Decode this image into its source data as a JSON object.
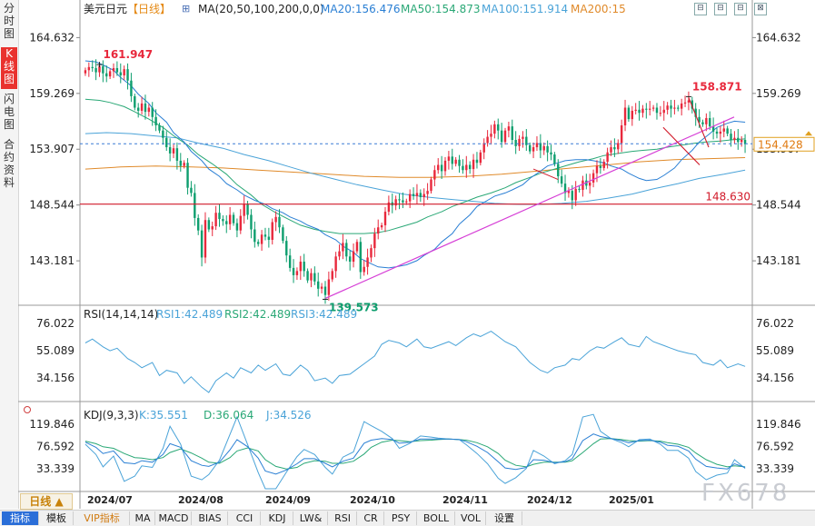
{
  "left_tabs": [
    {
      "label": "分时图",
      "active": false
    },
    {
      "label": "K线图",
      "active": true
    },
    {
      "label": "闪电图",
      "active": false
    },
    {
      "label": "合约资料",
      "active": false
    }
  ],
  "header": {
    "title": "美元日元",
    "period_tag": "【日线】",
    "ma_label": "MA(20,50,100,200,0,0)",
    "ma_values": [
      {
        "label": "MA20:156.476",
        "color": "#2a7fd4"
      },
      {
        "label": "MA50:154.873",
        "color": "#2aa876"
      },
      {
        "label": "MA100:151.914",
        "color": "#4aa3d8"
      },
      {
        "label": "MA200:15",
        "color": "#e08a2a"
      }
    ],
    "controls": [
      "⊟",
      "⊟",
      "⊟",
      "⊠"
    ]
  },
  "rsi_header": {
    "title": "RSI(14,14,14)",
    "values": [
      {
        "label": "RSI1:42.489",
        "color": "#4aa3d8"
      },
      {
        "label": "RSI2:42.489",
        "color": "#2aa876"
      },
      {
        "label": "RSI3:42.489",
        "color": "#4aa3d8"
      }
    ]
  },
  "kdj_header": {
    "title": "KDJ(9,3,3)",
    "values": [
      {
        "label": "K:35.551",
        "color": "#4aa3d8"
      },
      {
        "label": "D:36.064",
        "color": "#2aa876"
      },
      {
        "label": "J:34.526",
        "color": "#4aa3d8"
      }
    ]
  },
  "axis_labels": {
    "price": [
      "164.632",
      "159.269",
      "153.907",
      "148.544",
      "143.181"
    ],
    "rsi": [
      "76.022",
      "55.089",
      "34.156"
    ],
    "kdj": [
      "119.846",
      "76.592",
      "33.339"
    ]
  },
  "current_price": "154.428",
  "price_annotations": [
    "161.947",
    "158.871",
    "148.630",
    "139.573"
  ],
  "date_labels": [
    "2024/07",
    "2024/08",
    "2024/09",
    "2024/10",
    "2024/11",
    "2024/12",
    "2025/01"
  ],
  "period_button": "日线 ▲",
  "bottom_tabs": [
    "指标",
    "模板",
    "VIP指标",
    "MA",
    "MACD",
    "BIAS",
    "CCI",
    "KDJ",
    "LW&",
    "RSI",
    "CR",
    "PSY",
    "BOLL",
    "VOL",
    "设置"
  ],
  "watermark": "FX678",
  "colors": {
    "up": "#e8283c",
    "down": "#0e9e6e",
    "ma20": "#2a7fd4",
    "ma50": "#2aa876",
    "ma100": "#4aa3d8",
    "ma200": "#e08a2a",
    "trend": "#d63fd6",
    "red_line": "#d11a2a"
  },
  "chart_data": {
    "type": "candlestick",
    "title": "美元日元",
    "period": "日线",
    "ylim": [
      139.0,
      166.5
    ],
    "price_ticks": [
      164.632,
      159.269,
      153.907,
      148.544,
      143.181
    ],
    "months": [
      "2024/07",
      "2024/08",
      "2024/09",
      "2024/10",
      "2024/11",
      "2024/12",
      "2025/01"
    ],
    "closes": [
      161.5,
      161.8,
      161.7,
      161.3,
      161.9,
      161.2,
      160.9,
      161.4,
      161.7,
      161.3,
      161.0,
      161.6,
      160.5,
      159.0,
      157.9,
      157.6,
      158.3,
      157.5,
      157.9,
      157.0,
      156.2,
      155.7,
      155.0,
      154.1,
      153.5,
      154.0,
      152.8,
      152.3,
      152.6,
      150.2,
      149.7,
      147.3,
      146.1,
      143.5,
      147.1,
      146.2,
      146.5,
      147.8,
      147.2,
      147.0,
      146.7,
      147.6,
      146.8,
      146.1,
      147.5,
      148.6,
      147.6,
      146.2,
      145.0,
      144.8,
      145.7,
      145.5,
      145.2,
      146.9,
      147.4,
      146.4,
      145.1,
      143.7,
      142.5,
      141.8,
      142.2,
      143.1,
      142.2,
      141.3,
      142.0,
      141.2,
      140.5,
      140.7,
      139.9,
      141.4,
      142.2,
      143.6,
      144.1,
      144.9,
      143.6,
      143.1,
      144.1,
      145.0,
      142.1,
      142.6,
      143.5,
      144.4,
      145.8,
      146.4,
      146.6,
      147.9,
      148.8,
      148.5,
      149.1,
      149.0,
      148.8,
      148.9,
      149.6,
      149.4,
      149.7,
      149.3,
      149.6,
      149.9,
      151.0,
      151.9,
      152.4,
      151.8,
      152.8,
      153.2,
      152.5,
      152.9,
      152.3,
      151.9,
      152.4,
      152.0,
      152.9,
      152.6,
      153.6,
      154.5,
      155.1,
      155.4,
      156.3,
      155.7,
      154.6,
      155.7,
      156.1,
      154.8,
      154.2,
      154.9,
      155.1,
      154.3,
      153.7,
      154.1,
      154.5,
      153.8,
      154.2,
      153.6,
      153.4,
      152.5,
      151.3,
      150.6,
      149.7,
      149.9,
      149.0,
      150.1,
      150.0,
      150.9,
      150.4,
      150.7,
      151.6,
      152.3,
      152.1,
      152.7,
      153.6,
      154.1,
      153.9,
      154.5,
      156.2,
      157.9,
      156.8,
      157.6,
      157.7,
      157.4,
      157.8,
      157.7,
      157.8,
      157.9,
      157.4,
      157.4,
      157.7,
      158.1,
      157.8,
      157.9,
      157.8,
      158.3,
      158.4,
      158.6,
      157.8,
      157.0,
      156.5,
      156.3,
      156.9,
      156.1,
      155.6,
      155.4,
      155.6,
      155.9,
      155.4,
      154.8,
      155.0,
      154.6,
      154.8,
      154.4
    ],
    "ma20": [
      162.4,
      162.3,
      162.0,
      161.5,
      160.8,
      160.0,
      159.2,
      158.3,
      157.4,
      156.5,
      155.5,
      154.6,
      153.7,
      152.8,
      152.0,
      151.3,
      150.6,
      150.0,
      149.5,
      149.0,
      148.6,
      148.2,
      147.8,
      147.4,
      147.0,
      146.6,
      146.2,
      145.7,
      145.2,
      144.6,
      144.0,
      143.4,
      142.9,
      142.6,
      142.5,
      142.6,
      142.8,
      143.2,
      143.7,
      144.3,
      145.0,
      145.8,
      146.7,
      147.6,
      148.4,
      149.0,
      149.4,
      149.7,
      150.0,
      150.5,
      151.1,
      151.8,
      152.3,
      152.6,
      152.8,
      152.9,
      152.9,
      152.8,
      152.6,
      152.3,
      152.0,
      151.6,
      151.1,
      150.9,
      151.0,
      151.4,
      152.1,
      152.9,
      153.8,
      154.6,
      155.4,
      156.0,
      156.4,
      156.6,
      156.5
    ],
    "ma50": [
      158.7,
      158.6,
      158.4,
      158.0,
      157.5,
      156.8,
      156.0,
      155.2,
      154.3,
      153.4,
      152.5,
      151.5,
      150.5,
      149.5,
      148.6,
      147.8,
      147.1,
      146.6,
      146.2,
      146.0,
      145.8,
      145.8,
      145.8,
      145.9,
      146.1,
      146.5,
      146.9,
      147.4,
      147.9,
      148.4,
      148.9,
      149.3,
      149.7,
      150.2,
      150.7,
      151.2,
      151.6,
      152.0,
      152.4,
      152.7,
      153.0,
      153.3,
      153.5,
      153.7,
      153.8,
      153.9,
      154.1,
      154.3,
      154.5,
      154.6,
      154.7,
      154.8,
      154.9
    ],
    "ma100": [
      155.4,
      155.5,
      155.4,
      155.2,
      155.0,
      154.5,
      154.0,
      153.4,
      152.8,
      152.2,
      151.6,
      151.0,
      150.5,
      150.0,
      149.6,
      149.3,
      149.1,
      148.9,
      148.7,
      148.6,
      148.6,
      148.7,
      148.9,
      149.2,
      149.6,
      150.1,
      150.6,
      151.1,
      151.5,
      151.9
    ],
    "ma200": [
      152.0,
      152.2,
      152.3,
      152.2,
      152.1,
      151.9,
      151.7,
      151.5,
      151.3,
      151.2,
      151.2,
      151.3,
      151.5,
      151.8,
      152.1,
      152.4,
      152.7,
      152.9,
      153.0,
      153.1
    ],
    "rsi": [
      61,
      64,
      58,
      55,
      57,
      49,
      46,
      42,
      46,
      36,
      40,
      38,
      30,
      35,
      27,
      23,
      32,
      38,
      34,
      42,
      38,
      44,
      40,
      45,
      37,
      36,
      44,
      40,
      32,
      34,
      30,
      36,
      37,
      41,
      45,
      51,
      60,
      63,
      61,
      58,
      64,
      58,
      57,
      60,
      62,
      59,
      65,
      68,
      66,
      70,
      66,
      62,
      58,
      52,
      46,
      40,
      38,
      42,
      44,
      49,
      48,
      55,
      58,
      57,
      62,
      65,
      60,
      58,
      66,
      62,
      59,
      57,
      55,
      53,
      52,
      46,
      44,
      48,
      42,
      45,
      43
    ],
    "kdj_k": [
      85,
      75,
      63,
      68,
      45,
      43,
      49,
      46,
      61,
      82,
      75,
      49,
      40,
      38,
      46,
      70,
      90,
      76,
      54,
      29,
      23,
      31,
      43,
      53,
      53,
      44,
      37,
      48,
      54,
      83,
      89,
      92,
      90,
      83,
      85,
      91,
      91,
      91,
      91,
      90,
      86,
      77,
      65,
      47,
      35,
      32,
      36,
      51,
      50,
      45,
      47,
      53,
      88,
      101,
      96,
      92,
      88,
      84,
      88,
      89,
      85,
      79,
      77,
      68,
      52,
      38,
      35,
      33,
      43,
      36
    ],
    "kdj_d": [
      87,
      82,
      76,
      73,
      63,
      55,
      54,
      51,
      55,
      65,
      72,
      64,
      54,
      46,
      44,
      55,
      68,
      74,
      68,
      51,
      38,
      33,
      36,
      44,
      49,
      48,
      44,
      44,
      48,
      62,
      75,
      85,
      89,
      88,
      86,
      88,
      89,
      90,
      91,
      90,
      89,
      84,
      76,
      63,
      50,
      40,
      37,
      42,
      46,
      46,
      46,
      49,
      65,
      82,
      91,
      92,
      90,
      88,
      87,
      88,
      87,
      84,
      81,
      75,
      64,
      51,
      42,
      37,
      39,
      37
    ],
    "kdj_j": [
      81,
      61,
      37,
      58,
      9,
      19,
      39,
      36,
      73,
      116,
      81,
      19,
      12,
      22,
      50,
      100,
      134,
      80,
      26,
      -15,
      -7,
      27,
      57,
      71,
      61,
      36,
      23,
      56,
      66,
      125,
      117,
      106,
      92,
      73,
      83,
      97,
      95,
      93,
      91,
      90,
      80,
      63,
      43,
      15,
      5,
      16,
      34,
      69,
      58,
      43,
      49,
      61,
      134,
      139,
      106,
      92,
      84,
      76,
      90,
      91,
      81,
      69,
      69,
      54,
      28,
      12,
      21,
      25,
      51,
      34
    ]
  }
}
